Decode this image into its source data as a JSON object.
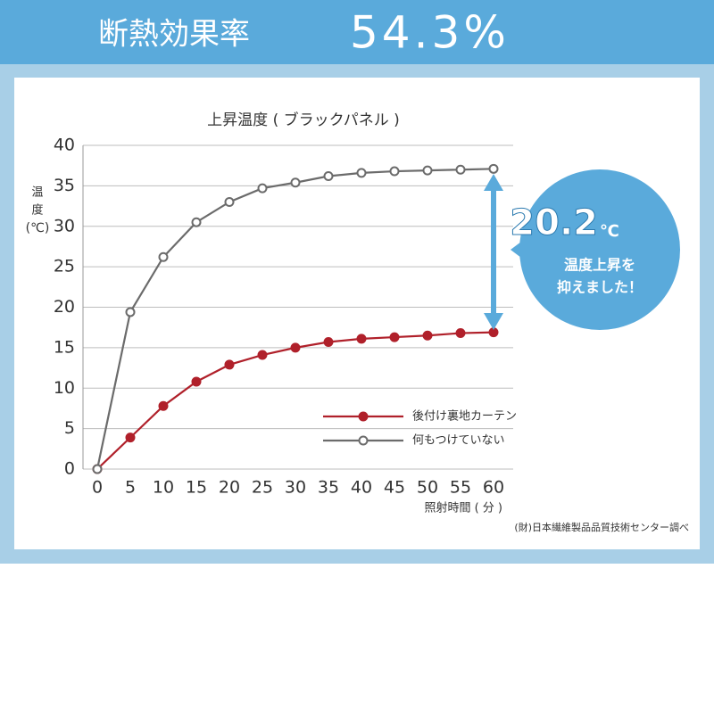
{
  "header": {
    "label": "断熱効果率",
    "value": "54.3%"
  },
  "chart_data": {
    "type": "line",
    "title": "上昇温度 ( ブラックパネル )",
    "ylabel": [
      "温",
      "度",
      "(℃)"
    ],
    "xlabel": "照射時間 ( 分 )",
    "source": "(財)日本繊維製品品質技術センター調べ",
    "x": [
      0,
      5,
      10,
      15,
      20,
      25,
      30,
      35,
      40,
      45,
      50,
      55,
      60
    ],
    "series": [
      {
        "name": "後付け裏地カーテン",
        "color": "#b0202a",
        "marker": "filled",
        "values": [
          0,
          3.9,
          7.8,
          10.8,
          12.9,
          14.1,
          15,
          15.7,
          16.1,
          16.3,
          16.5,
          16.8,
          16.9
        ]
      },
      {
        "name": "何もつけていない",
        "color": "#6b6b6b",
        "marker": "open",
        "values": [
          0,
          19.4,
          26.2,
          30.5,
          33,
          34.7,
          35.4,
          36.2,
          36.6,
          36.8,
          36.9,
          37,
          37.1
        ]
      }
    ],
    "xlim": [
      0,
      60
    ],
    "xticks": [
      0,
      5,
      10,
      15,
      20,
      25,
      30,
      35,
      40,
      45,
      50,
      55,
      60
    ],
    "ylim": [
      0,
      40
    ],
    "yticks": [
      0,
      5,
      10,
      15,
      20,
      25,
      30,
      35,
      40
    ],
    "grid": true,
    "legend": "lower right",
    "callout": {
      "value": "20.2",
      "unit": "℃",
      "lines": [
        "温度上昇を",
        "抑えました！"
      ]
    }
  }
}
